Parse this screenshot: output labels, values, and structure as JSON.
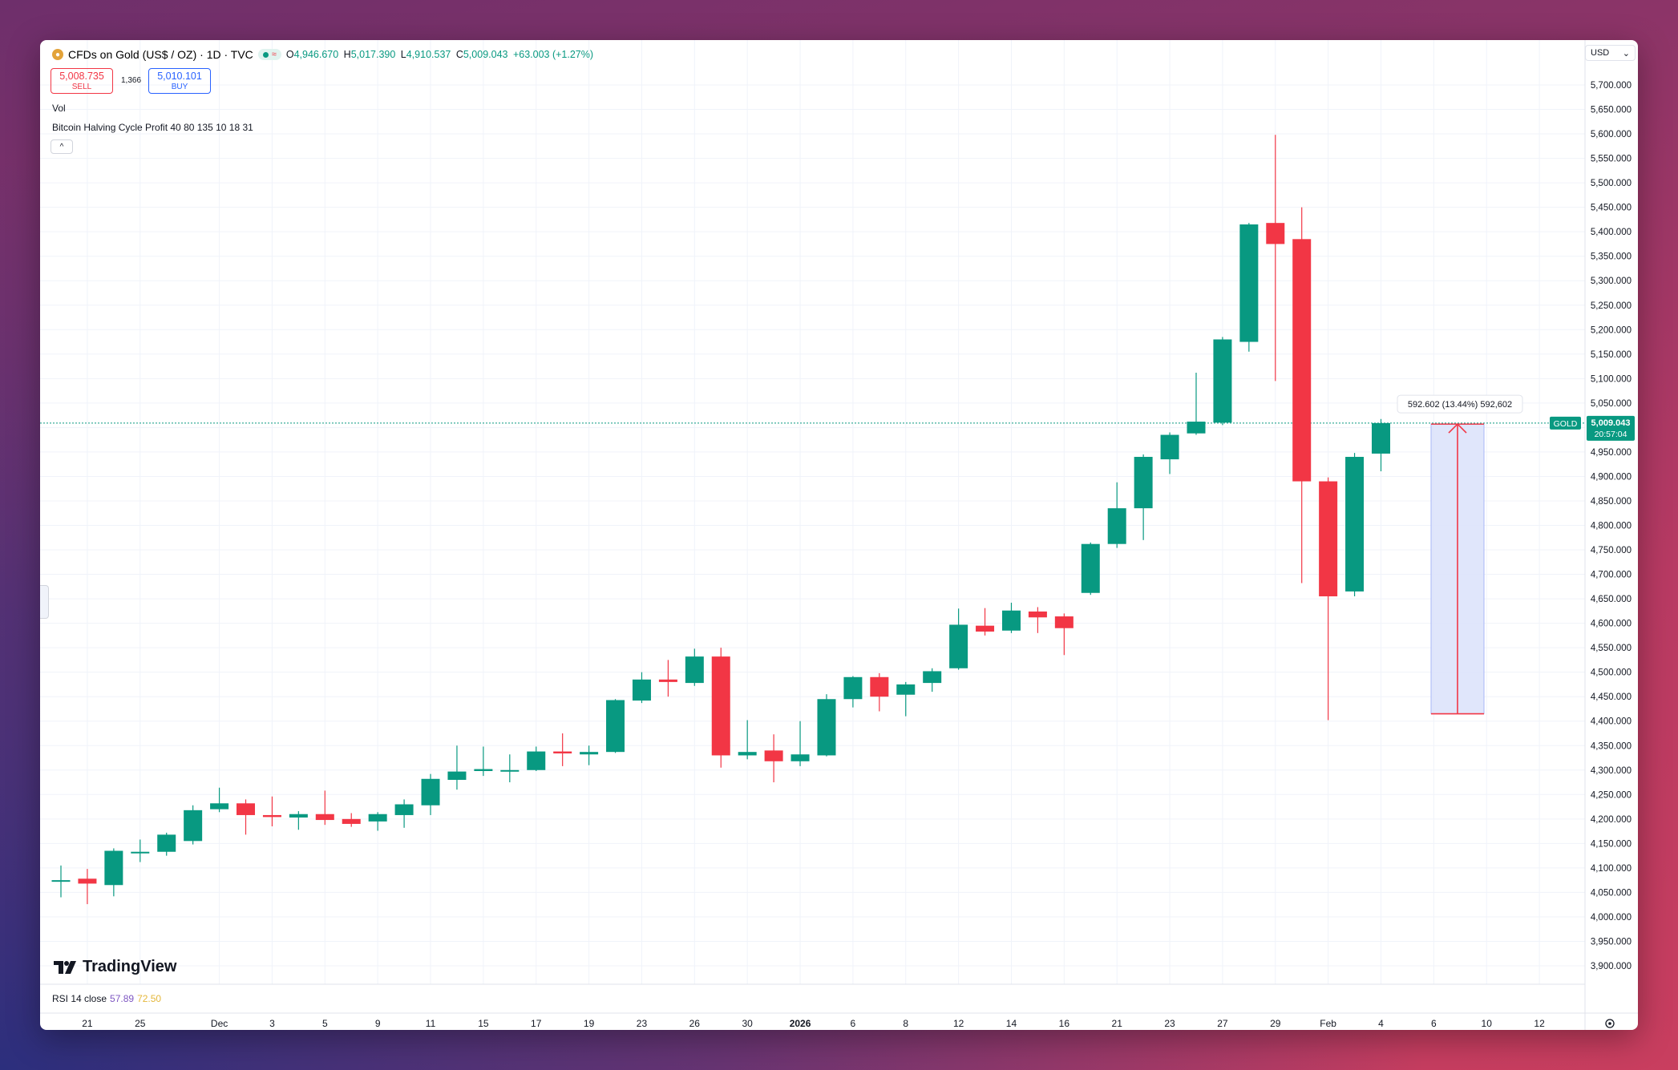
{
  "header": {
    "title": "CFDs on Gold (US$ / OZ) · 1D · TVC",
    "ohlc": {
      "o_label": "O",
      "o": "4,946.670",
      "h_label": "H",
      "h": "5,017.390",
      "l_label": "L",
      "l": "4,910.537",
      "c_label": "C",
      "c": "5,009.043",
      "change": "+63.003 (+1.27%)"
    },
    "sell_price": "5,008.735",
    "sell_label": "SELL",
    "spread": "1,366",
    "buy_price": "5,010.101",
    "buy_label": "BUY",
    "vol_label": "Vol",
    "indicator_label": "Bitcoin Halving Cycle Profit 40 80 135 10 18 31",
    "collapse_icon": "^",
    "currency": "USD",
    "currency_chevron": "⌄",
    "logo_text": "TradingView"
  },
  "rsi": {
    "label": "RSI 14 close",
    "value1": "57.89",
    "value2": "72.50"
  },
  "measure": {
    "label": "592.602 (13.44%) 592,602",
    "from": 4415,
    "to": 5007
  },
  "price_tag": {
    "symbol": "GOLD",
    "price": "5,009.043",
    "countdown": "20:57:04",
    "value": 5009.043
  },
  "colors": {
    "up": "#089981",
    "down": "#f23645",
    "measure_fill": "#dde3fb",
    "accent": "#2962ff"
  },
  "chart_data": {
    "type": "candlestick",
    "y_axis_ticks": [
      "5,700.000",
      "5,650.000",
      "5,600.000",
      "5,550.000",
      "5,500.000",
      "5,450.000",
      "5,400.000",
      "5,350.000",
      "5,300.000",
      "5,250.000",
      "5,200.000",
      "5,150.000",
      "5,100.000",
      "5,050.000",
      "5,000.000",
      "4,950.000",
      "4,900.000",
      "4,850.000",
      "4,800.000",
      "4,750.000",
      "4,700.000",
      "4,650.000",
      "4,600.000",
      "4,550.000",
      "4,500.000",
      "4,450.000",
      "4,400.000",
      "4,350.000",
      "4,300.000",
      "4,250.000",
      "4,200.000",
      "4,150.000",
      "4,100.000",
      "4,050.000",
      "4,000.000",
      "3,950.000",
      "3,900.000"
    ],
    "y_tick_values": [
      5700,
      5650,
      5600,
      5550,
      5500,
      5450,
      5400,
      5350,
      5300,
      5250,
      5200,
      5150,
      5100,
      5050,
      5000,
      4950,
      4900,
      4850,
      4800,
      4750,
      4700,
      4650,
      4600,
      4550,
      4500,
      4450,
      4400,
      4350,
      4300,
      4250,
      4200,
      4150,
      4100,
      4050,
      4000,
      3950,
      3900
    ],
    "x_ticks": [
      {
        "label": "21",
        "idx": 1
      },
      {
        "label": "25",
        "idx": 3
      },
      {
        "label": "Dec",
        "idx": 6
      },
      {
        "label": "3",
        "idx": 8
      },
      {
        "label": "5",
        "idx": 10
      },
      {
        "label": "9",
        "idx": 12
      },
      {
        "label": "11",
        "idx": 14
      },
      {
        "label": "15",
        "idx": 16
      },
      {
        "label": "17",
        "idx": 18
      },
      {
        "label": "19",
        "idx": 20
      },
      {
        "label": "23",
        "idx": 22
      },
      {
        "label": "26",
        "idx": 24
      },
      {
        "label": "30",
        "idx": 26
      },
      {
        "label": "2026",
        "idx": 28
      },
      {
        "label": "6",
        "idx": 30
      },
      {
        "label": "8",
        "idx": 32
      },
      {
        "label": "12",
        "idx": 34
      },
      {
        "label": "14",
        "idx": 36
      },
      {
        "label": "16",
        "idx": 38
      },
      {
        "label": "21",
        "idx": 40
      },
      {
        "label": "23",
        "idx": 42
      },
      {
        "label": "27",
        "idx": 44
      },
      {
        "label": "29",
        "idx": 46
      },
      {
        "label": "Feb",
        "idx": 48
      },
      {
        "label": "4",
        "idx": 50
      },
      {
        "label": "6",
        "idx": 52
      },
      {
        "label": "10",
        "idx": 54
      },
      {
        "label": "12",
        "idx": 56
      }
    ],
    "ylim": [
      3880,
      5740
    ],
    "candles": [
      {
        "o": 4075,
        "h": 4105,
        "l": 4040,
        "c": 4075
      },
      {
        "o": 4078,
        "h": 4098,
        "l": 4026,
        "c": 4068
      },
      {
        "o": 4065,
        "h": 4140,
        "l": 4042,
        "c": 4135
      },
      {
        "o": 4130,
        "h": 4158,
        "l": 4112,
        "c": 4133
      },
      {
        "o": 4133,
        "h": 4172,
        "l": 4125,
        "c": 4168
      },
      {
        "o": 4155,
        "h": 4228,
        "l": 4148,
        "c": 4218
      },
      {
        "o": 4220,
        "h": 4264,
        "l": 4214,
        "c": 4232
      },
      {
        "o": 4232,
        "h": 4240,
        "l": 4168,
        "c": 4208
      },
      {
        "o": 4208,
        "h": 4246,
        "l": 4185,
        "c": 4204
      },
      {
        "o": 4203,
        "h": 4216,
        "l": 4178,
        "c": 4210
      },
      {
        "o": 4210,
        "h": 4258,
        "l": 4188,
        "c": 4198
      },
      {
        "o": 4200,
        "h": 4212,
        "l": 4184,
        "c": 4190
      },
      {
        "o": 4195,
        "h": 4214,
        "l": 4176,
        "c": 4210
      },
      {
        "o": 4208,
        "h": 4240,
        "l": 4182,
        "c": 4230
      },
      {
        "o": 4228,
        "h": 4292,
        "l": 4208,
        "c": 4282
      },
      {
        "o": 4280,
        "h": 4350,
        "l": 4260,
        "c": 4297
      },
      {
        "o": 4298,
        "h": 4348,
        "l": 4288,
        "c": 4302
      },
      {
        "o": 4300,
        "h": 4332,
        "l": 4275,
        "c": 4300
      },
      {
        "o": 4300,
        "h": 4348,
        "l": 4298,
        "c": 4338
      },
      {
        "o": 4338,
        "h": 4375,
        "l": 4308,
        "c": 4334
      },
      {
        "o": 4332,
        "h": 4350,
        "l": 4310,
        "c": 4337
      },
      {
        "o": 4337,
        "h": 4445,
        "l": 4335,
        "c": 4443
      },
      {
        "o": 4442,
        "h": 4500,
        "l": 4437,
        "c": 4485
      },
      {
        "o": 4485,
        "h": 4525,
        "l": 4450,
        "c": 4480
      },
      {
        "o": 4478,
        "h": 4548,
        "l": 4472,
        "c": 4532
      },
      {
        "o": 4532,
        "h": 4550,
        "l": 4305,
        "c": 4330
      },
      {
        "o": 4330,
        "h": 4402,
        "l": 4322,
        "c": 4337
      },
      {
        "o": 4340,
        "h": 4373,
        "l": 4275,
        "c": 4318
      },
      {
        "o": 4318,
        "h": 4400,
        "l": 4308,
        "c": 4332
      },
      {
        "o": 4330,
        "h": 4455,
        "l": 4328,
        "c": 4445
      },
      {
        "o": 4445,
        "h": 4492,
        "l": 4428,
        "c": 4490
      },
      {
        "o": 4490,
        "h": 4498,
        "l": 4420,
        "c": 4450
      },
      {
        "o": 4454,
        "h": 4480,
        "l": 4410,
        "c": 4475
      },
      {
        "o": 4478,
        "h": 4508,
        "l": 4460,
        "c": 4502
      },
      {
        "o": 4508,
        "h": 4630,
        "l": 4505,
        "c": 4597
      },
      {
        "o": 4595,
        "h": 4631,
        "l": 4575,
        "c": 4583
      },
      {
        "o": 4585,
        "h": 4642,
        "l": 4580,
        "c": 4626
      },
      {
        "o": 4624,
        "h": 4633,
        "l": 4580,
        "c": 4612
      },
      {
        "o": 4614,
        "h": 4620,
        "l": 4535,
        "c": 4590
      },
      {
        "o": 4662,
        "h": 4765,
        "l": 4658,
        "c": 4762
      },
      {
        "o": 4762,
        "h": 4888,
        "l": 4754,
        "c": 4835
      },
      {
        "o": 4835,
        "h": 4945,
        "l": 4770,
        "c": 4940
      },
      {
        "o": 4935,
        "h": 4990,
        "l": 4905,
        "c": 4985
      },
      {
        "o": 4988,
        "h": 5112,
        "l": 4985,
        "c": 5012
      },
      {
        "o": 5010,
        "h": 5185,
        "l": 5005,
        "c": 5180
      },
      {
        "o": 5175,
        "h": 5418,
        "l": 5155,
        "c": 5415
      },
      {
        "o": 5418,
        "h": 5598,
        "l": 5095,
        "c": 5375
      },
      {
        "o": 5385,
        "h": 5450,
        "l": 4682,
        "c": 4890
      },
      {
        "o": 4890,
        "h": 4898,
        "l": 4402,
        "c": 4655
      },
      {
        "o": 4665,
        "h": 4948,
        "l": 4655,
        "c": 4940
      },
      {
        "o": 4946.67,
        "h": 5017.39,
        "l": 4910.54,
        "c": 5009.04
      }
    ],
    "grid": true
  }
}
